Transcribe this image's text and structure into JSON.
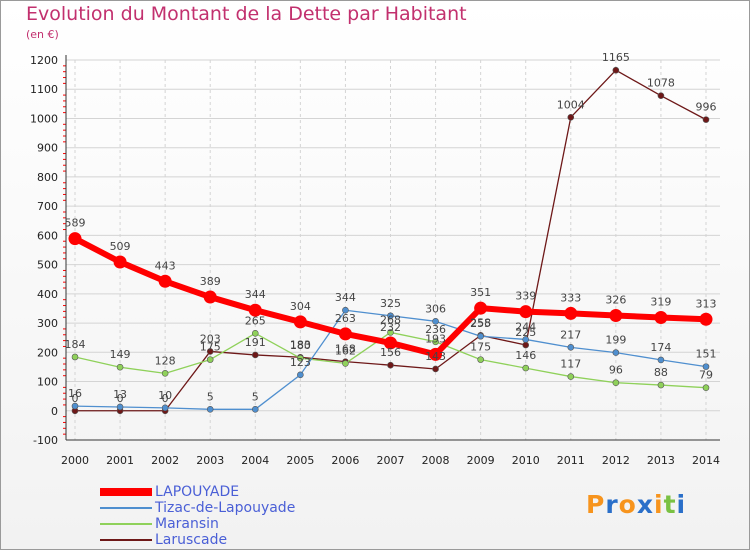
{
  "title": "Evolution du Montant de la Dette par Habitant",
  "subtitle": "(en €)",
  "logo": {
    "letters": [
      "P",
      "r",
      "o",
      "x",
      "i",
      "t",
      "i"
    ],
    "colors": [
      "#f7941d",
      "#2a6fc9",
      "#f7941d",
      "#2a6fc9",
      "#f7941d",
      "#7ac143",
      "#2a6fc9"
    ]
  },
  "chart_data": {
    "type": "line",
    "title": "Evolution du Montant de la Dette par Habitant",
    "ylabel": "(en €)",
    "xlabel": "",
    "x": [
      "2000",
      "2001",
      "2002",
      "2003",
      "2004",
      "2005",
      "2006",
      "2007",
      "2008",
      "2009",
      "2010",
      "2011",
      "2012",
      "2013",
      "2014"
    ],
    "ylim": [
      -100,
      1200
    ],
    "yticks": [
      "-100",
      "0",
      "100",
      "200",
      "300",
      "400",
      "500",
      "600",
      "700",
      "800",
      "900",
      "1000",
      "1100",
      "1200"
    ],
    "grid": true,
    "legend_position": "bottom-left",
    "series": [
      {
        "name": "LAPOUYADE",
        "color": "#ff0000",
        "values": [
          589,
          509,
          443,
          389,
          344,
          304,
          263,
          232,
          193,
          351,
          339,
          333,
          326,
          319,
          313
        ],
        "labels": [
          "589",
          "509",
          "443",
          "389",
          "344",
          "304",
          "263",
          "232",
          "193",
          "351",
          "339",
          "333",
          "326",
          "319",
          "313"
        ]
      },
      {
        "name": "Tizac-de-Lapouyade",
        "color": "#4f8fcf",
        "values": [
          16,
          13,
          10,
          5,
          5,
          123,
          344,
          325,
          306,
          255,
          244,
          217,
          199,
          174,
          151
        ],
        "labels": [
          "16",
          "13",
          "10",
          "5",
          "5",
          "123",
          "344",
          "325",
          "306",
          "255",
          "244",
          "217",
          "199",
          "174",
          "151"
        ]
      },
      {
        "name": "Maransin",
        "color": "#8fd15a",
        "values": [
          184,
          149,
          128,
          175,
          265,
          180,
          162,
          268,
          236,
          175,
          146,
          117,
          96,
          88,
          79
        ],
        "labels": [
          "184",
          "149",
          "128",
          "175",
          "265",
          "180",
          "162",
          "268",
          "236",
          "175",
          "146",
          "117",
          "96",
          "88",
          "79"
        ]
      },
      {
        "name": "Laruscade",
        "color": "#6e1818",
        "values": [
          0,
          0,
          0,
          203,
          191,
          183,
          168,
          156,
          143,
          258,
          225,
          1004,
          1165,
          1078,
          996
        ],
        "labels": [
          "0",
          "0",
          "0",
          "203",
          "191",
          "183",
          "168",
          "156",
          "143",
          "258",
          "225",
          "1004",
          "1165",
          "1078",
          "996"
        ]
      }
    ]
  }
}
